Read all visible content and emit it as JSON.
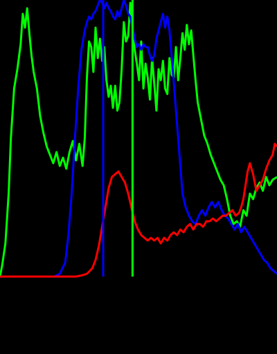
{
  "chart_data": {
    "type": "line",
    "title": "",
    "xlabel": "",
    "ylabel": "",
    "xlim": [
      0,
      255
    ],
    "ylim": [
      0,
      1
    ],
    "grid": false,
    "background": "#000000",
    "series": [
      {
        "color": "#00ff00",
        "x": [
          0,
          2,
          5,
          8,
          10,
          13,
          16,
          19,
          21,
          23,
          25,
          27,
          29,
          31,
          34,
          37,
          40,
          43,
          46,
          49,
          52,
          55,
          58,
          61,
          64,
          67,
          70,
          73,
          76,
          78,
          80,
          82,
          84,
          86,
          88,
          90,
          92,
          94,
          96,
          98,
          100,
          102,
          104,
          106,
          108,
          110,
          112,
          114,
          116,
          118,
          120,
          122,
          124,
          126,
          128,
          130,
          132,
          134,
          136,
          138,
          140,
          142,
          144,
          146,
          148,
          150,
          152,
          154,
          156,
          158,
          160,
          162,
          164,
          166,
          168,
          170,
          172,
          174,
          176,
          178,
          180,
          182,
          185,
          188,
          191,
          194,
          197,
          200,
          203,
          206,
          209,
          212,
          215,
          218,
          221,
          224,
          227,
          230,
          233,
          236,
          239,
          242,
          245,
          248,
          251,
          255
        ],
        "y": [
          0.0,
          0.04,
          0.12,
          0.3,
          0.5,
          0.68,
          0.75,
          0.84,
          0.95,
          0.9,
          0.97,
          0.88,
          0.8,
          0.74,
          0.68,
          0.58,
          0.52,
          0.47,
          0.44,
          0.41,
          0.45,
          0.4,
          0.43,
          0.39,
          0.45,
          0.49,
          0.42,
          0.48,
          0.4,
          0.5,
          0.72,
          0.85,
          0.83,
          0.74,
          0.9,
          0.79,
          0.86,
          0.78,
          0.83,
          0.71,
          0.65,
          0.69,
          0.61,
          0.69,
          0.6,
          0.63,
          0.75,
          0.92,
          0.85,
          0.87,
          0.99,
          0.9,
          0.82,
          0.77,
          0.71,
          0.85,
          0.68,
          0.77,
          0.72,
          0.64,
          0.79,
          0.7,
          0.6,
          0.75,
          0.71,
          0.78,
          0.68,
          0.66,
          0.79,
          0.73,
          0.72,
          0.83,
          0.71,
          0.79,
          0.88,
          0.82,
          0.91,
          0.84,
          0.89,
          0.8,
          0.71,
          0.63,
          0.57,
          0.51,
          0.48,
          0.44,
          0.41,
          0.38,
          0.35,
          0.33,
          0.28,
          0.22,
          0.19,
          0.2,
          0.18,
          0.24,
          0.22,
          0.3,
          0.28,
          0.32,
          0.34,
          0.31,
          0.36,
          0.33,
          0.35,
          0.36
        ]
      },
      {
        "color": "#0000ff",
        "x": [
          0,
          50,
          55,
          60,
          63,
          66,
          69,
          72,
          75,
          78,
          80,
          82,
          84,
          86,
          88,
          90,
          92,
          94,
          96,
          98,
          100,
          102,
          104,
          106,
          108,
          110,
          112,
          114,
          116,
          118,
          120,
          122,
          124,
          126,
          128,
          130,
          132,
          134,
          136,
          138,
          140,
          142,
          144,
          146,
          148,
          150,
          152,
          154,
          156,
          158,
          160,
          162,
          164,
          166,
          168,
          171,
          174,
          177,
          180,
          183,
          186,
          189,
          192,
          195,
          198,
          201,
          204,
          207,
          210,
          213,
          216,
          219,
          222,
          225,
          228,
          231,
          234,
          237,
          240,
          243,
          246,
          249,
          252,
          255
        ],
        "y": [
          0.0,
          0.0,
          0.01,
          0.05,
          0.15,
          0.3,
          0.5,
          0.68,
          0.82,
          0.89,
          0.92,
          0.94,
          0.93,
          0.95,
          0.96,
          0.98,
          1.0,
          0.99,
          0.97,
          0.99,
          0.97,
          0.96,
          0.94,
          0.93,
          0.96,
          0.94,
          0.97,
          1.0,
          0.98,
          0.95,
          0.94,
          0.9,
          0.86,
          0.83,
          0.84,
          0.82,
          0.84,
          0.83,
          0.83,
          0.8,
          0.78,
          0.8,
          0.86,
          0.89,
          0.92,
          0.95,
          0.9,
          0.94,
          0.89,
          0.8,
          0.7,
          0.6,
          0.5,
          0.4,
          0.3,
          0.25,
          0.22,
          0.2,
          0.19,
          0.22,
          0.24,
          0.22,
          0.25,
          0.27,
          0.25,
          0.27,
          0.24,
          0.22,
          0.21,
          0.19,
          0.17,
          0.19,
          0.16,
          0.18,
          0.16,
          0.14,
          0.12,
          0.1,
          0.08,
          0.06,
          0.05,
          0.03,
          0.02,
          0.01
        ]
      },
      {
        "color": "#ff0000",
        "x": [
          0,
          70,
          75,
          80,
          85,
          88,
          91,
          94,
          97,
          100,
          103,
          106,
          109,
          112,
          115,
          118,
          121,
          124,
          127,
          130,
          133,
          136,
          139,
          142,
          145,
          148,
          151,
          154,
          157,
          160,
          163,
          166,
          169,
          172,
          175,
          178,
          181,
          184,
          187,
          190,
          193,
          196,
          199,
          202,
          205,
          208,
          211,
          214,
          217,
          220,
          222,
          224,
          226,
          228,
          230,
          233,
          236,
          239,
          242,
          245,
          248,
          251,
          253,
          255
        ],
        "y": [
          0.0,
          0.0,
          0.004,
          0.01,
          0.03,
          0.06,
          0.11,
          0.18,
          0.25,
          0.32,
          0.36,
          0.37,
          0.38,
          0.36,
          0.34,
          0.3,
          0.25,
          0.2,
          0.17,
          0.15,
          0.14,
          0.13,
          0.14,
          0.13,
          0.14,
          0.12,
          0.14,
          0.13,
          0.15,
          0.16,
          0.15,
          0.17,
          0.16,
          0.18,
          0.19,
          0.17,
          0.19,
          0.19,
          0.18,
          0.2,
          0.2,
          0.21,
          0.2,
          0.21,
          0.22,
          0.22,
          0.23,
          0.24,
          0.22,
          0.23,
          0.25,
          0.28,
          0.33,
          0.38,
          0.41,
          0.37,
          0.31,
          0.33,
          0.35,
          0.39,
          0.42,
          0.44,
          0.48,
          0.47
        ]
      }
    ],
    "vlines": [
      {
        "x": 95,
        "color": "#0000ff"
      },
      {
        "x": 122,
        "color": "#00ff00"
      }
    ]
  }
}
